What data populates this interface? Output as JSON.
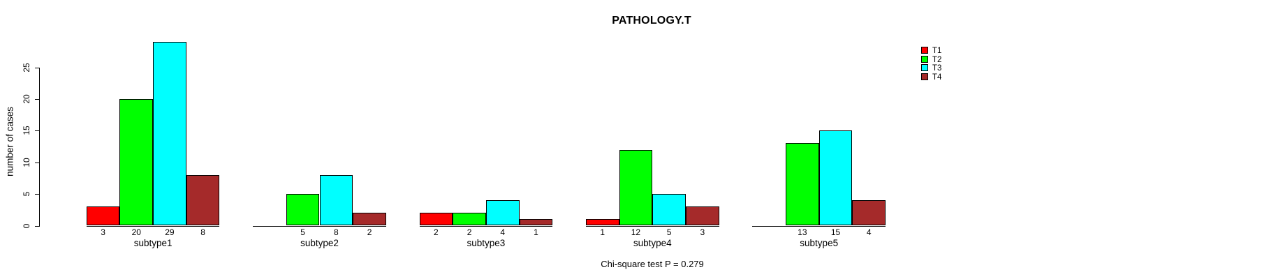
{
  "title": "PATHOLOGY.T",
  "footnote": "Chi-square test P = 0.279",
  "y_axis": {
    "label": "number of cases",
    "ticks": [
      0,
      5,
      10,
      15,
      20,
      25
    ]
  },
  "legend": {
    "position": "right",
    "entries": [
      {
        "label": "T1",
        "color": "#FF0000"
      },
      {
        "label": "T2",
        "color": "#00FF00"
      },
      {
        "label": "T3",
        "color": "#00FFFF"
      },
      {
        "label": "T4",
        "color": "#A52A2A"
      }
    ]
  },
  "chart_data": {
    "type": "bar",
    "grouped": true,
    "title": "PATHOLOGY.T",
    "xlabel": "",
    "ylabel": "number of cases",
    "ylim": [
      0,
      29
    ],
    "grid": false,
    "legend_position": "right",
    "categories": [
      "subtype1",
      "subtype2",
      "subtype3",
      "subtype4",
      "subtype5"
    ],
    "series": [
      {
        "name": "T1",
        "color": "#FF0000",
        "values": [
          3,
          0,
          2,
          1,
          0
        ]
      },
      {
        "name": "T2",
        "color": "#00FF00",
        "values": [
          20,
          5,
          2,
          12,
          13
        ]
      },
      {
        "name": "T3",
        "color": "#00FFFF",
        "values": [
          29,
          8,
          4,
          5,
          15
        ]
      },
      {
        "name": "T4",
        "color": "#A52A2A",
        "values": [
          8,
          2,
          1,
          3,
          4
        ]
      }
    ],
    "bar_value_labels_shown": true,
    "zero_value_labels_hidden": true,
    "annotation": "Chi-square test P = 0.279"
  }
}
